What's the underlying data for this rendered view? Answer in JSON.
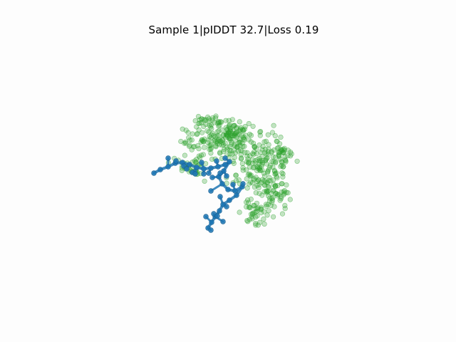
{
  "title": "Sample 1|pIDDT 32.7|Loss 0.19",
  "colors": {
    "ligand": "#1f77b4",
    "protein": "#2ca02c",
    "background": "#fdfdfd"
  },
  "chart_data": {
    "type": "scatter",
    "title": "Sample 1|pIDDT 32.7|Loss 0.19",
    "xlabel": "",
    "ylabel": "",
    "axes": "off",
    "grid": false,
    "series": [
      {
        "color": "#2ca02c",
        "role": "protein",
        "x": [],
        "y": []
      },
      {
        "color": "#1f77b4",
        "role": "ligand",
        "x": [],
        "y": []
      }
    ]
  }
}
